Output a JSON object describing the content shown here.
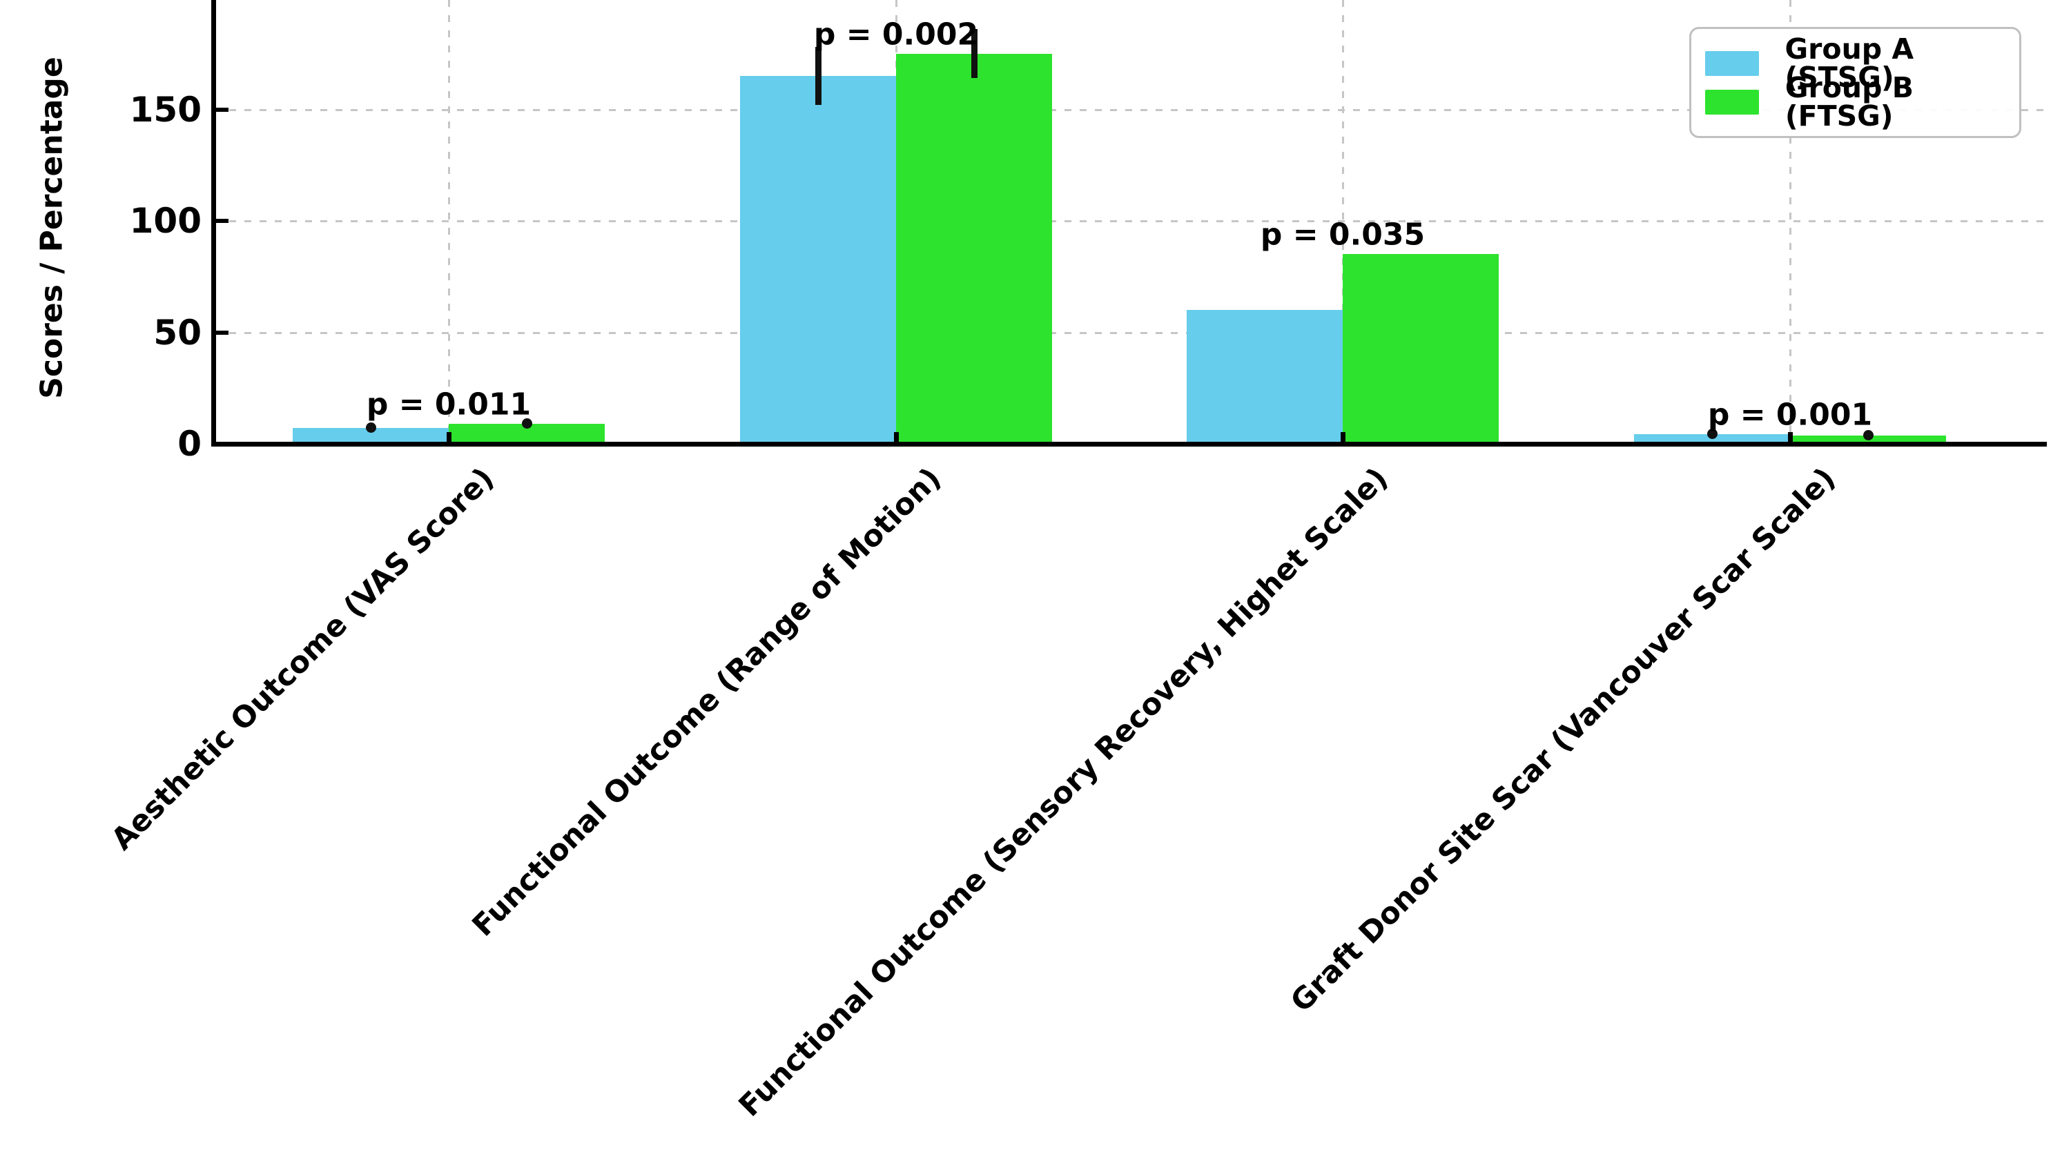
{
  "figure": {
    "background": "#ffffff",
    "ylabel": "Scores / Percentage"
  },
  "chart_data": {
    "type": "bar",
    "title": "",
    "xlabel": "",
    "ylabel": "Scores / Percentage",
    "categories": [
      "Aesthetic Outcome (VAS Score)",
      "Functional Outcome (Range of Motion)",
      "Functional Outcome (Sensory Recovery, Highet Scale)",
      "Graft Donor Site Scar (Vancouver Scar Scale)"
    ],
    "series": [
      {
        "name": "Group A (STSG)",
        "color": "#66cdec",
        "values": [
          7,
          165,
          60,
          4.2
        ],
        "errors": [
          1,
          13,
          0,
          1
        ]
      },
      {
        "name": "Group B (FTSG)",
        "color": "#2ee32e",
        "values": [
          9,
          175,
          85,
          3.8
        ],
        "errors": [
          1,
          11,
          0,
          1
        ]
      }
    ],
    "p_annotations": [
      "p = 0.011",
      "p = 0.002",
      "p = 0.035",
      "p = 0.001"
    ],
    "yticks": [
      0,
      50,
      100,
      150
    ],
    "ylim_visible": [
      0,
      199
    ],
    "grid": "dashed",
    "legend_position": "upper right",
    "bar_orientation": "vertical",
    "axis_color": "#000000",
    "grid_color": "#c6c6c6"
  }
}
